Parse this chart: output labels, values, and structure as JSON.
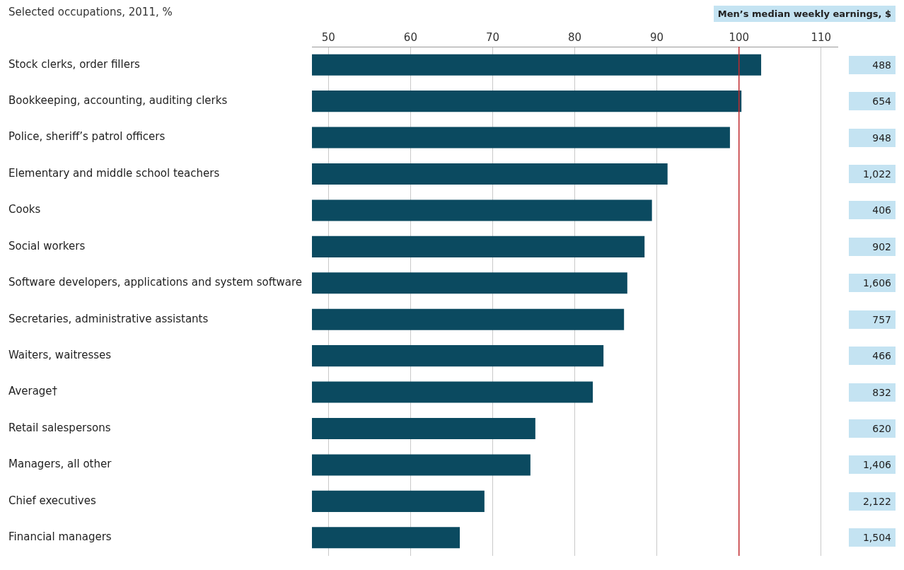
{
  "chart_data": [
    {
      "type": "bar",
      "orientation": "horizontal",
      "subtitle": "Selected occupations, 2011, %",
      "categories": [
        "Stock clerks, order fillers",
        "Bookkeeping, accounting, auditing clerks",
        "Police, sheriff’s patrol officers",
        "Elementary and middle school teachers",
        "Cooks",
        "Social workers",
        "Software developers, applications and system software",
        "Secretaries, administrative assistants",
        "Waiters, waitresses",
        "Average†",
        "Retail salespersons",
        "Managers, all other",
        "Chief executives",
        "Financial managers"
      ],
      "values": [
        102.7,
        100.3,
        98.9,
        91.3,
        89.4,
        88.5,
        86.4,
        86.0,
        83.5,
        82.2,
        75.2,
        74.6,
        69.0,
        66.0
      ],
      "color": "#0b4a60",
      "xlim": [
        48,
        112
      ],
      "xticks": [
        50,
        60,
        70,
        80,
        90,
        100,
        110
      ],
      "grid": "x",
      "legend": false,
      "ref_lines": [
        {
          "axis": "x",
          "value": 100,
          "color": "#c0282d"
        }
      ]
    },
    {
      "type": "other",
      "title": "Men’s median weekly earnings, $",
      "color": "#c4e3f2",
      "values": [
        488,
        654,
        948,
        1022,
        406,
        902,
        1606,
        757,
        466,
        832,
        620,
        1406,
        2122,
        1504
      ],
      "value_labels": [
        "488",
        "654",
        "948",
        "1,022",
        "406",
        "902",
        "1,606",
        "757",
        "466",
        "832",
        "620",
        "1,406",
        "2,122",
        "1,504"
      ]
    }
  ]
}
